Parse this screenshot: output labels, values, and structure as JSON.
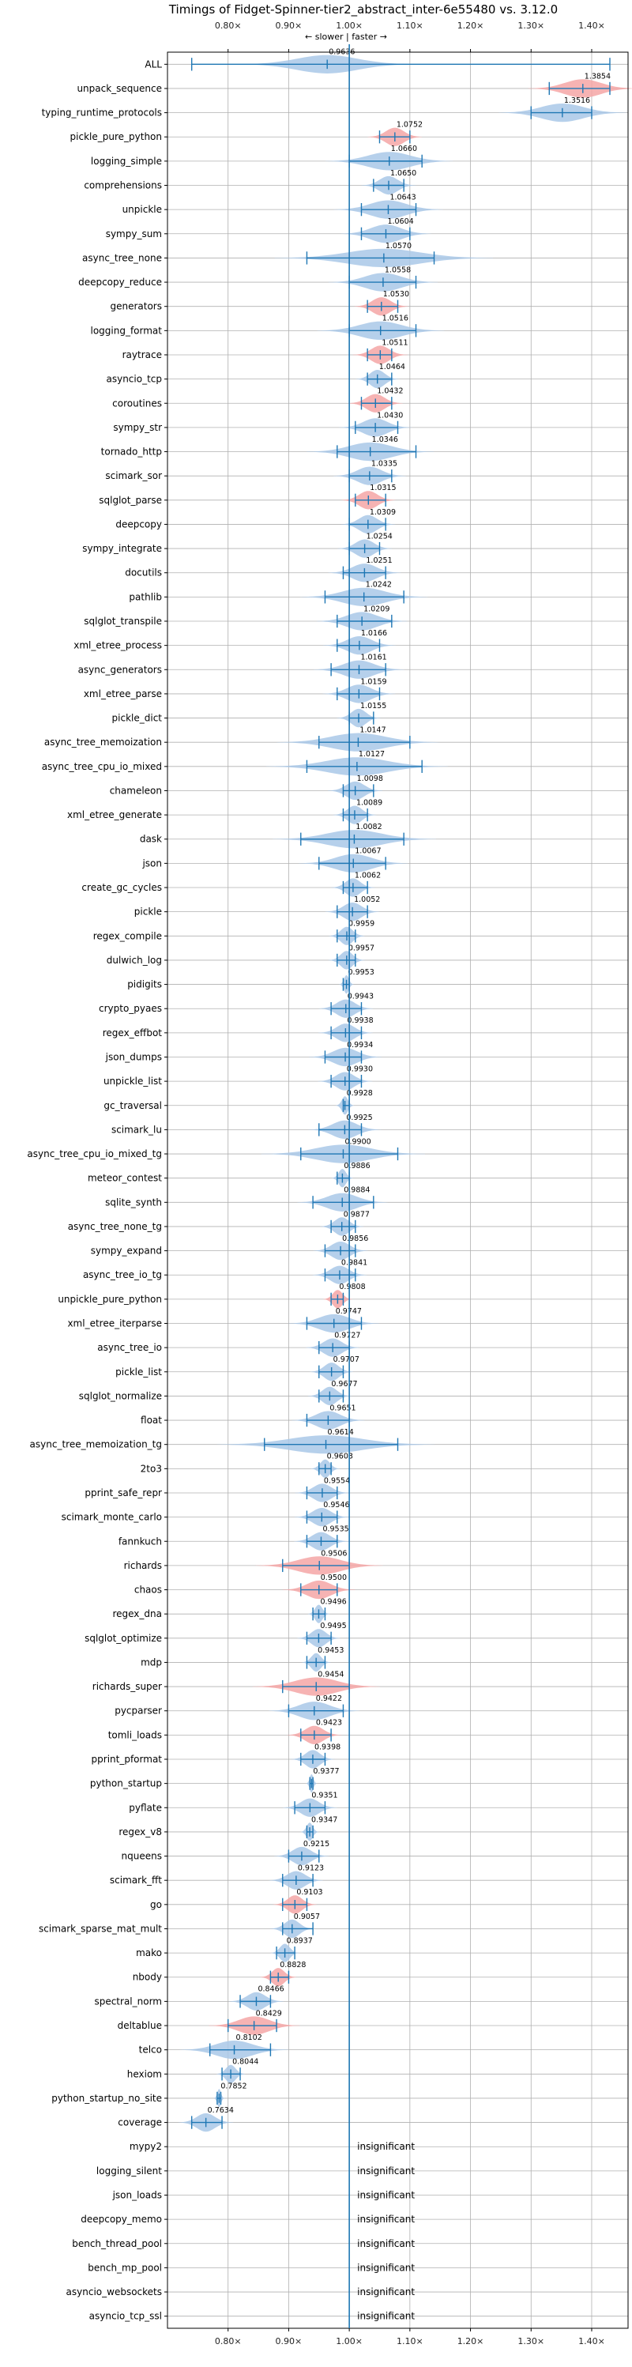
{
  "chart_data": {
    "type": "violin",
    "title": "Timings of Fidget-Spinner-tier2_abstract_inter-6e55480 vs. 3.12.0",
    "annotation": "← slower | faster →",
    "xlim": [
      0.7,
      1.46
    ],
    "x_ticks": [
      0.8,
      0.9,
      1.0,
      1.1,
      1.2,
      1.3,
      1.4
    ],
    "x_tick_labels": [
      "0.80×",
      "0.90×",
      "1.00×",
      "1.10×",
      "1.20×",
      "1.30×",
      "1.40×"
    ],
    "reference_line": 1.0,
    "grid": true,
    "colors": {
      "normal": "#a9c8e8",
      "significant": "#f4a6a6",
      "line": "#1f77b4"
    },
    "rows": [
      {
        "name": "ALL",
        "value": 0.9636,
        "min": 0.74,
        "max": 1.43,
        "spread": 0.05,
        "highlight": false
      },
      {
        "name": "unpack_sequence",
        "value": 1.3854,
        "min": 1.33,
        "max": 1.43,
        "spread": 0.03,
        "highlight": true
      },
      {
        "name": "typing_runtime_protocols",
        "value": 1.3516,
        "min": 1.3,
        "max": 1.4,
        "spread": 0.035,
        "highlight": false
      },
      {
        "name": "pickle_pure_python",
        "value": 1.0752,
        "min": 1.05,
        "max": 1.1,
        "spread": 0.015,
        "highlight": true
      },
      {
        "name": "logging_simple",
        "value": 1.066,
        "min": 1.0,
        "max": 1.12,
        "spread": 0.035,
        "highlight": false
      },
      {
        "name": "comprehensions",
        "value": 1.065,
        "min": 1.04,
        "max": 1.09,
        "spread": 0.015,
        "highlight": false
      },
      {
        "name": "unpickle",
        "value": 1.0643,
        "min": 1.02,
        "max": 1.11,
        "spread": 0.03,
        "highlight": false
      },
      {
        "name": "sympy_sum",
        "value": 1.0604,
        "min": 1.02,
        "max": 1.1,
        "spread": 0.025,
        "highlight": false
      },
      {
        "name": "async_tree_none",
        "value": 1.057,
        "min": 0.93,
        "max": 1.14,
        "spread": 0.06,
        "highlight": false
      },
      {
        "name": "deepcopy_reduce",
        "value": 1.0558,
        "min": 1.0,
        "max": 1.11,
        "spread": 0.03,
        "highlight": false
      },
      {
        "name": "generators",
        "value": 1.053,
        "min": 1.03,
        "max": 1.08,
        "spread": 0.015,
        "highlight": true
      },
      {
        "name": "logging_format",
        "value": 1.0516,
        "min": 1.0,
        "max": 1.11,
        "spread": 0.035,
        "highlight": false
      },
      {
        "name": "raytrace",
        "value": 1.0511,
        "min": 1.03,
        "max": 1.07,
        "spread": 0.015,
        "highlight": true
      },
      {
        "name": "asyncio_tcp",
        "value": 1.0464,
        "min": 1.03,
        "max": 1.07,
        "spread": 0.012,
        "highlight": false
      },
      {
        "name": "coroutines",
        "value": 1.0432,
        "min": 1.02,
        "max": 1.07,
        "spread": 0.015,
        "highlight": true
      },
      {
        "name": "sympy_str",
        "value": 1.043,
        "min": 1.01,
        "max": 1.08,
        "spread": 0.02,
        "highlight": false
      },
      {
        "name": "tornado_http",
        "value": 1.0346,
        "min": 0.98,
        "max": 1.11,
        "spread": 0.035,
        "highlight": false
      },
      {
        "name": "scimark_sor",
        "value": 1.0335,
        "min": 1.0,
        "max": 1.07,
        "spread": 0.02,
        "highlight": false
      },
      {
        "name": "sqlglot_parse",
        "value": 1.0315,
        "min": 1.01,
        "max": 1.06,
        "spread": 0.015,
        "highlight": true
      },
      {
        "name": "deepcopy",
        "value": 1.0309,
        "min": 1.0,
        "max": 1.06,
        "spread": 0.015,
        "highlight": false
      },
      {
        "name": "sympy_integrate",
        "value": 1.0254,
        "min": 1.0,
        "max": 1.05,
        "spread": 0.015,
        "highlight": false
      },
      {
        "name": "docutils",
        "value": 1.0251,
        "min": 0.99,
        "max": 1.06,
        "spread": 0.02,
        "highlight": false
      },
      {
        "name": "pathlib",
        "value": 1.0242,
        "min": 0.96,
        "max": 1.09,
        "spread": 0.035,
        "highlight": false
      },
      {
        "name": "sqlglot_transpile",
        "value": 1.0209,
        "min": 0.98,
        "max": 1.07,
        "spread": 0.025,
        "highlight": false
      },
      {
        "name": "xml_etree_process",
        "value": 1.0166,
        "min": 0.98,
        "max": 1.05,
        "spread": 0.02,
        "highlight": false
      },
      {
        "name": "async_generators",
        "value": 1.0161,
        "min": 0.97,
        "max": 1.06,
        "spread": 0.025,
        "highlight": false
      },
      {
        "name": "xml_etree_parse",
        "value": 1.0159,
        "min": 0.98,
        "max": 1.05,
        "spread": 0.02,
        "highlight": false
      },
      {
        "name": "pickle_dict",
        "value": 1.0155,
        "min": 1.0,
        "max": 1.04,
        "spread": 0.012,
        "highlight": false
      },
      {
        "name": "async_tree_memoization",
        "value": 1.0147,
        "min": 0.95,
        "max": 1.1,
        "spread": 0.045,
        "highlight": false
      },
      {
        "name": "async_tree_cpu_io_mixed",
        "value": 1.0127,
        "min": 0.93,
        "max": 1.12,
        "spread": 0.05,
        "highlight": false
      },
      {
        "name": "chameleon",
        "value": 1.0098,
        "min": 0.99,
        "max": 1.04,
        "spread": 0.015,
        "highlight": false
      },
      {
        "name": "xml_etree_generate",
        "value": 1.0089,
        "min": 0.99,
        "max": 1.03,
        "spread": 0.012,
        "highlight": false
      },
      {
        "name": "dask",
        "value": 1.0082,
        "min": 0.92,
        "max": 1.09,
        "spread": 0.045,
        "highlight": false
      },
      {
        "name": "json",
        "value": 1.0067,
        "min": 0.95,
        "max": 1.06,
        "spread": 0.03,
        "highlight": false
      },
      {
        "name": "create_gc_cycles",
        "value": 1.0062,
        "min": 0.99,
        "max": 1.03,
        "spread": 0.012,
        "highlight": false
      },
      {
        "name": "pickle",
        "value": 1.0052,
        "min": 0.98,
        "max": 1.03,
        "spread": 0.015,
        "highlight": false
      },
      {
        "name": "regex_compile",
        "value": 0.9959,
        "min": 0.98,
        "max": 1.01,
        "spread": 0.01,
        "highlight": false
      },
      {
        "name": "dulwich_log",
        "value": 0.9957,
        "min": 0.98,
        "max": 1.01,
        "spread": 0.01,
        "highlight": false
      },
      {
        "name": "pidigits",
        "value": 0.9953,
        "min": 0.99,
        "max": 1.0,
        "spread": 0.004,
        "highlight": false
      },
      {
        "name": "crypto_pyaes",
        "value": 0.9943,
        "min": 0.97,
        "max": 1.02,
        "spread": 0.015,
        "highlight": false
      },
      {
        "name": "regex_effbot",
        "value": 0.9938,
        "min": 0.97,
        "max": 1.02,
        "spread": 0.015,
        "highlight": false
      },
      {
        "name": "json_dumps",
        "value": 0.9934,
        "min": 0.96,
        "max": 1.02,
        "spread": 0.02,
        "highlight": false
      },
      {
        "name": "unpickle_list",
        "value": 0.993,
        "min": 0.97,
        "max": 1.02,
        "spread": 0.015,
        "highlight": false
      },
      {
        "name": "gc_traversal",
        "value": 0.9928,
        "min": 0.99,
        "max": 1.0,
        "spread": 0.005,
        "highlight": false
      },
      {
        "name": "scimark_lu",
        "value": 0.9925,
        "min": 0.95,
        "max": 1.02,
        "spread": 0.02,
        "highlight": false
      },
      {
        "name": "async_tree_cpu_io_mixed_tg",
        "value": 0.99,
        "min": 0.92,
        "max": 1.08,
        "spread": 0.045,
        "highlight": false
      },
      {
        "name": "meteor_contest",
        "value": 0.9886,
        "min": 0.98,
        "max": 1.0,
        "spread": 0.006,
        "highlight": false
      },
      {
        "name": "sqlite_synth",
        "value": 0.9884,
        "min": 0.94,
        "max": 1.04,
        "spread": 0.025,
        "highlight": false
      },
      {
        "name": "async_tree_none_tg",
        "value": 0.9877,
        "min": 0.97,
        "max": 1.01,
        "spread": 0.012,
        "highlight": false
      },
      {
        "name": "sympy_expand",
        "value": 0.9856,
        "min": 0.96,
        "max": 1.01,
        "spread": 0.015,
        "highlight": false
      },
      {
        "name": "async_tree_io_tg",
        "value": 0.9841,
        "min": 0.96,
        "max": 1.01,
        "spread": 0.015,
        "highlight": false
      },
      {
        "name": "unpickle_pure_python",
        "value": 0.9808,
        "min": 0.97,
        "max": 0.99,
        "spread": 0.008,
        "highlight": true
      },
      {
        "name": "xml_etree_iterparse",
        "value": 0.9747,
        "min": 0.93,
        "max": 1.02,
        "spread": 0.025,
        "highlight": false
      },
      {
        "name": "async_tree_io",
        "value": 0.9727,
        "min": 0.95,
        "max": 1.0,
        "spread": 0.015,
        "highlight": false
      },
      {
        "name": "pickle_list",
        "value": 0.9707,
        "min": 0.95,
        "max": 0.99,
        "spread": 0.012,
        "highlight": false
      },
      {
        "name": "sqlglot_normalize",
        "value": 0.9677,
        "min": 0.95,
        "max": 0.99,
        "spread": 0.012,
        "highlight": false
      },
      {
        "name": "float",
        "value": 0.9651,
        "min": 0.93,
        "max": 1.0,
        "spread": 0.02,
        "highlight": false
      },
      {
        "name": "async_tree_memoization_tg",
        "value": 0.9614,
        "min": 0.86,
        "max": 1.08,
        "spread": 0.06,
        "highlight": false
      },
      {
        "name": "2to3",
        "value": 0.9603,
        "min": 0.95,
        "max": 0.97,
        "spread": 0.008,
        "highlight": false
      },
      {
        "name": "pprint_safe_repr",
        "value": 0.9554,
        "min": 0.93,
        "max": 0.98,
        "spread": 0.015,
        "highlight": false
      },
      {
        "name": "scimark_monte_carlo",
        "value": 0.9546,
        "min": 0.93,
        "max": 0.98,
        "spread": 0.015,
        "highlight": false
      },
      {
        "name": "fannkuch",
        "value": 0.9535,
        "min": 0.93,
        "max": 0.98,
        "spread": 0.015,
        "highlight": false
      },
      {
        "name": "richards",
        "value": 0.9506,
        "min": 0.89,
        "max": 1.0,
        "spread": 0.035,
        "highlight": true
      },
      {
        "name": "chaos",
        "value": 0.95,
        "min": 0.92,
        "max": 0.98,
        "spread": 0.02,
        "highlight": true
      },
      {
        "name": "regex_dna",
        "value": 0.9496,
        "min": 0.94,
        "max": 0.96,
        "spread": 0.006,
        "highlight": false
      },
      {
        "name": "sqlglot_optimize",
        "value": 0.9495,
        "min": 0.93,
        "max": 0.97,
        "spread": 0.012,
        "highlight": false
      },
      {
        "name": "mdp",
        "value": 0.9453,
        "min": 0.93,
        "max": 0.96,
        "spread": 0.008,
        "highlight": false
      },
      {
        "name": "richards_super",
        "value": 0.9454,
        "min": 0.89,
        "max": 1.0,
        "spread": 0.035,
        "highlight": true
      },
      {
        "name": "pycparser",
        "value": 0.9422,
        "min": 0.9,
        "max": 0.99,
        "spread": 0.025,
        "highlight": false
      },
      {
        "name": "tomli_loads",
        "value": 0.9423,
        "min": 0.92,
        "max": 0.97,
        "spread": 0.015,
        "highlight": true
      },
      {
        "name": "pprint_pformat",
        "value": 0.9398,
        "min": 0.92,
        "max": 0.96,
        "spread": 0.012,
        "highlight": false
      },
      {
        "name": "python_startup",
        "value": 0.9377,
        "min": 0.935,
        "max": 0.94,
        "spread": 0.003,
        "highlight": false
      },
      {
        "name": "pyflate",
        "value": 0.9351,
        "min": 0.91,
        "max": 0.96,
        "spread": 0.015,
        "highlight": false
      },
      {
        "name": "regex_v8",
        "value": 0.9347,
        "min": 0.93,
        "max": 0.94,
        "spread": 0.005,
        "highlight": false
      },
      {
        "name": "nqueens",
        "value": 0.9215,
        "min": 0.9,
        "max": 0.95,
        "spread": 0.015,
        "highlight": false
      },
      {
        "name": "scimark_fft",
        "value": 0.9123,
        "min": 0.89,
        "max": 0.94,
        "spread": 0.015,
        "highlight": false
      },
      {
        "name": "go",
        "value": 0.9103,
        "min": 0.89,
        "max": 0.93,
        "spread": 0.012,
        "highlight": true
      },
      {
        "name": "scimark_sparse_mat_mult",
        "value": 0.9057,
        "min": 0.89,
        "max": 0.94,
        "spread": 0.012,
        "highlight": false
      },
      {
        "name": "mako",
        "value": 0.8937,
        "min": 0.88,
        "max": 0.91,
        "spread": 0.008,
        "highlight": false
      },
      {
        "name": "nbody",
        "value": 0.8828,
        "min": 0.87,
        "max": 0.9,
        "spread": 0.01,
        "highlight": true
      },
      {
        "name": "spectral_norm",
        "value": 0.8466,
        "min": 0.82,
        "max": 0.87,
        "spread": 0.015,
        "highlight": false
      },
      {
        "name": "deltablue",
        "value": 0.8429,
        "min": 0.8,
        "max": 0.88,
        "spread": 0.025,
        "highlight": true
      },
      {
        "name": "telco",
        "value": 0.8102,
        "min": 0.77,
        "max": 0.87,
        "spread": 0.03,
        "highlight": false
      },
      {
        "name": "hexiom",
        "value": 0.8044,
        "min": 0.79,
        "max": 0.82,
        "spread": 0.008,
        "highlight": false
      },
      {
        "name": "python_startup_no_site",
        "value": 0.7852,
        "min": 0.782,
        "max": 0.788,
        "spread": 0.003,
        "highlight": false
      },
      {
        "name": "coverage",
        "value": 0.7634,
        "min": 0.74,
        "max": 0.79,
        "spread": 0.015,
        "highlight": false
      },
      {
        "name": "mypy2",
        "value": null,
        "insignificant": "insignificant"
      },
      {
        "name": "logging_silent",
        "value": null,
        "insignificant": "insignificant"
      },
      {
        "name": "json_loads",
        "value": null,
        "insignificant": "insignificant"
      },
      {
        "name": "deepcopy_memo",
        "value": null,
        "insignificant": "insignificant"
      },
      {
        "name": "bench_thread_pool",
        "value": null,
        "insignificant": "insignificant"
      },
      {
        "name": "bench_mp_pool",
        "value": null,
        "insignificant": "insignificant"
      },
      {
        "name": "asyncio_websockets",
        "value": null,
        "insignificant": "insignificant"
      },
      {
        "name": "asyncio_tcp_ssl",
        "value": null,
        "insignificant": "insignificant"
      }
    ]
  }
}
